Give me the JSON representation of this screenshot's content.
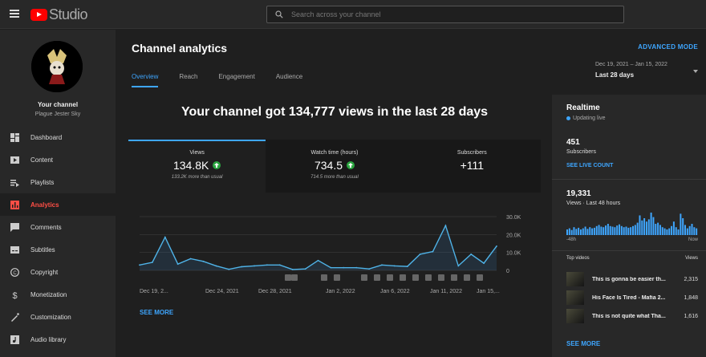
{
  "app": {
    "logo_text": "Studio"
  },
  "search": {
    "placeholder": "Search across your channel"
  },
  "channel": {
    "title": "Your channel",
    "name": "Plague Jester Sky"
  },
  "sidebar": {
    "items": [
      {
        "label": "Dashboard",
        "icon": "dashboard-icon"
      },
      {
        "label": "Content",
        "icon": "content-icon"
      },
      {
        "label": "Playlists",
        "icon": "playlists-icon"
      },
      {
        "label": "Analytics",
        "icon": "analytics-icon",
        "active": true
      },
      {
        "label": "Comments",
        "icon": "comments-icon"
      },
      {
        "label": "Subtitles",
        "icon": "subtitles-icon"
      },
      {
        "label": "Copyright",
        "icon": "copyright-icon"
      },
      {
        "label": "Monetization",
        "icon": "monetization-icon"
      },
      {
        "label": "Customization",
        "icon": "customization-icon"
      },
      {
        "label": "Audio library",
        "icon": "audio-library-icon"
      }
    ]
  },
  "header": {
    "title": "Channel analytics",
    "advanced_mode": "ADVANCED MODE"
  },
  "tabs": [
    {
      "label": "Overview"
    },
    {
      "label": "Reach"
    },
    {
      "label": "Engagement"
    },
    {
      "label": "Audience"
    }
  ],
  "date_range": {
    "dates": "Dec 19, 2021 – Jan 15, 2022",
    "label": "Last 28 days"
  },
  "summary": {
    "headline": "Your channel got 134,777 views in the last 28 days"
  },
  "metrics": [
    {
      "label": "Views",
      "value": "134.8K",
      "note": "133.2K more than usual"
    },
    {
      "label": "Watch time (hours)",
      "value": "734.5",
      "note": "714.5 more than usual"
    },
    {
      "label": "Subscribers",
      "value": "+111",
      "note": ""
    }
  ],
  "see_more": "SEE MORE",
  "colors": {
    "accent": "#3ea6ff",
    "active_nav": "#ff4e45",
    "up": "#2ba640"
  },
  "chart_data": {
    "type": "line",
    "x_tick_labels": [
      "Dec 19, 2...",
      "Dec 24, 2021",
      "Dec 28, 2021",
      "Jan 2, 2022",
      "Jan 6, 2022",
      "Jan 11, 2022",
      "Jan 15,..."
    ],
    "y_tick_labels": [
      "30.0K",
      "20.0K",
      "10.0K",
      "0"
    ],
    "ylim": [
      0,
      30000
    ],
    "series": [
      {
        "values": [
          3000,
          4500,
          18500,
          3500,
          6500,
          5000,
          2500,
          600,
          2000,
          2500,
          3000,
          3000,
          500,
          800,
          5500,
          1500,
          1500,
          1500,
          800,
          3000,
          2500,
          2200,
          9000,
          10500,
          25000,
          2500,
          9000,
          4000,
          13500
        ]
      }
    ]
  },
  "realtime": {
    "title": "Realtime",
    "status": "Updating live",
    "subscribers": "451",
    "subscribers_label": "Subscribers",
    "see_live": "SEE LIVE COUNT",
    "views": "19,331",
    "views_label": "Views · Last 48 hours",
    "axis_start": "-48h",
    "axis_end": "Now",
    "bars": [
      10,
      12,
      9,
      14,
      11,
      13,
      10,
      12,
      15,
      11,
      14,
      12,
      13,
      16,
      18,
      15,
      14,
      17,
      20,
      16,
      15,
      14,
      17,
      19,
      16,
      14,
      15,
      13,
      14,
      16,
      18,
      22,
      35,
      26,
      30,
      24,
      28,
      40,
      32,
      20,
      22,
      18,
      14,
      12,
      10,
      12,
      16,
      24,
      14,
      10,
      38,
      30,
      18,
      12,
      16,
      20,
      14,
      12
    ],
    "top_videos_label": "Top videos",
    "views_col": "Views",
    "videos": [
      {
        "title": "This is gonna be easier th...",
        "views": "2,315"
      },
      {
        "title": "His Face Is Tired - Mafia 2...",
        "views": "1,848"
      },
      {
        "title": "This is not quite what Tha...",
        "views": "1,616"
      }
    ],
    "see_more": "SEE MORE"
  }
}
